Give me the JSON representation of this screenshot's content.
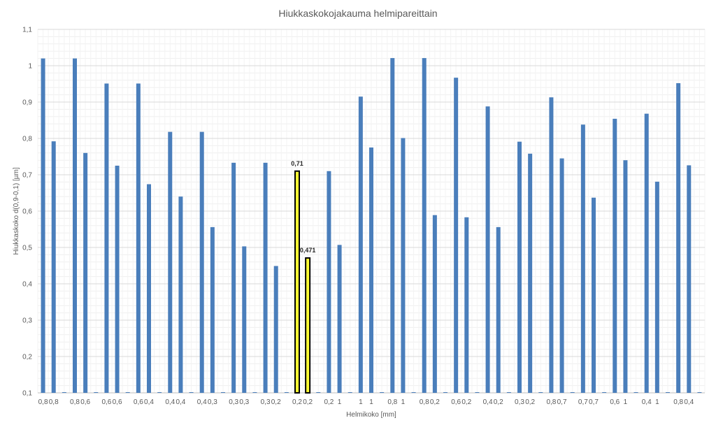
{
  "chart_data": {
    "type": "bar",
    "title": "Hiukkaskokojakauma helmipareittain",
    "xlabel": "Helmikoko [mm]",
    "ylabel": "Hiukkaskoko d(0,9-0,1) [µm]",
    "ylim": [
      0.1,
      1.1
    ],
    "yticks": [
      "0,1",
      "0,2",
      "0,3",
      "0,4",
      "0,5",
      "0,6",
      "0,7",
      "0,8",
      "0,9",
      "1",
      "1,1"
    ],
    "grid": true,
    "legend": "none",
    "categories": [
      "0,8",
      "0,8",
      "",
      "0,8",
      "0,6",
      "",
      "0,6",
      "0,6",
      "",
      "0,6",
      "0,4",
      "",
      "0,4",
      "0,4",
      "",
      "0,4",
      "0,3",
      "",
      "0,3",
      "0,3",
      "",
      "0,3",
      "0,2",
      "",
      "0,2",
      "0,2",
      "",
      "0,2",
      "1",
      "",
      "1",
      "1",
      "",
      "0,8",
      "1",
      "",
      "0,8",
      "0,2",
      "",
      "0,6",
      "0,2",
      "",
      "0,4",
      "0,2",
      "",
      "0,3",
      "0,2",
      "",
      "0,8",
      "0,7",
      "",
      "0,7",
      "0,7",
      "",
      "0,6",
      "1",
      "",
      "0,4",
      "1",
      "",
      "0,8",
      "0,4",
      ""
    ],
    "values": [
      1.02,
      0.792,
      0.1,
      1.02,
      0.76,
      0.1,
      0.951,
      0.725,
      0.1,
      0.951,
      0.674,
      0.1,
      0.818,
      0.64,
      0.1,
      0.818,
      0.556,
      0.1,
      0.733,
      0.503,
      0.1,
      0.733,
      0.449,
      0.1,
      0.71,
      0.471,
      0.1,
      0.71,
      0.507,
      0.1,
      0.915,
      0.775,
      0.1,
      1.021,
      0.801,
      0.1,
      1.021,
      0.589,
      0.1,
      0.967,
      0.583,
      0.1,
      0.888,
      0.556,
      0.1,
      0.791,
      0.758,
      0.1,
      0.913,
      0.745,
      0.1,
      0.838,
      0.637,
      0.1,
      0.854,
      0.74,
      0.1,
      0.868,
      0.681,
      0.1,
      0.952,
      0.726,
      0.1
    ],
    "highlighted": [
      {
        "index": 24,
        "label": "0,71"
      },
      {
        "index": 25,
        "label": "0,471"
      }
    ],
    "colors": {
      "bar": "#4a7ebb",
      "highlight_fill": "#ffff33",
      "highlight_stroke": "#000000",
      "grid": "#d9d9d9",
      "text": "#595959"
    }
  }
}
